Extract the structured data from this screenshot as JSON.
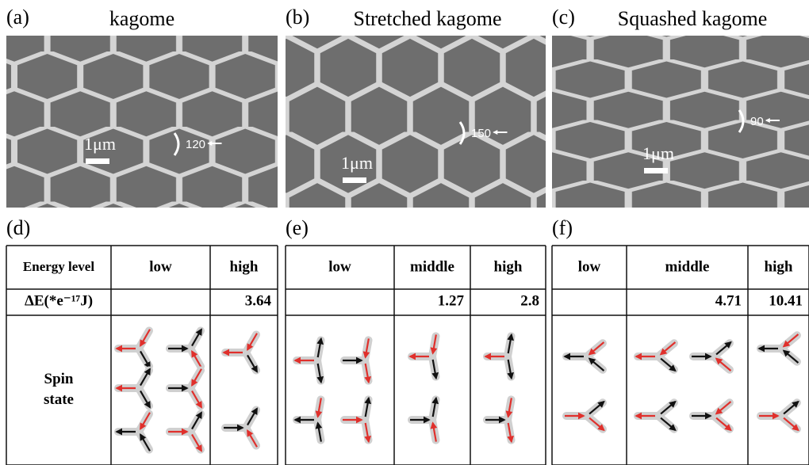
{
  "panels": [
    {
      "label": "(a)",
      "title": "kagome",
      "scale_bar": "1μm",
      "angle": 120
    },
    {
      "label": "(b)",
      "title": "Stretched kagome",
      "scale_bar": "1μm",
      "angle": 150
    },
    {
      "label": "(c)",
      "title": "Squashed kagome",
      "scale_bar": "1μm",
      "angle": 90
    }
  ],
  "tables": [
    {
      "label": "(d)",
      "row_header": "Energy level",
      "energy_label": "ΔE(*e⁻¹⁷J)",
      "spin_label": "Spin state",
      "columns": [
        "low",
        "high"
      ],
      "energies": [
        null,
        3.64
      ]
    },
    {
      "label": "(e)",
      "columns": [
        "low",
        "middle",
        "high"
      ],
      "energies": [
        null,
        1.27,
        2.8
      ]
    },
    {
      "label": "(f)",
      "columns": [
        "low",
        "middle",
        "high"
      ],
      "energies": [
        null,
        4.71,
        10.41
      ]
    }
  ]
}
